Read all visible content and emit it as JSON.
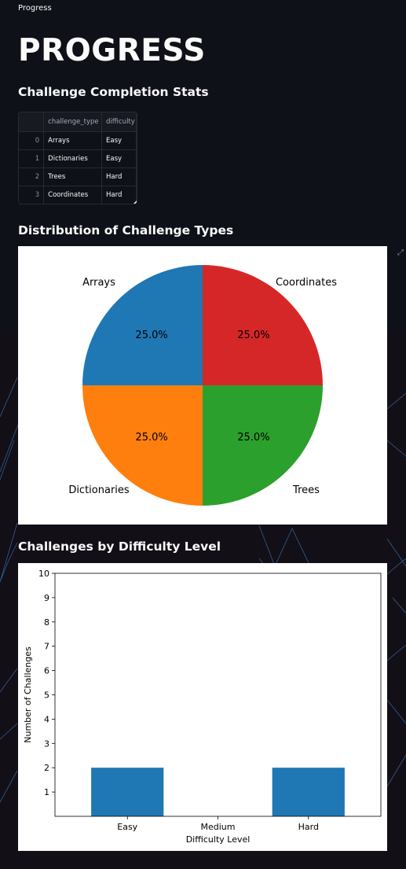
{
  "app": {
    "page_label": "Progress",
    "title": "PROGRESS"
  },
  "sections": {
    "stats_heading": "Challenge Completion Stats",
    "pie_heading": "Distribution of Challenge Types",
    "bar_heading": "Challenges by Difficulty Level"
  },
  "table": {
    "columns": [
      "challenge_type",
      "difficulty"
    ],
    "rows": [
      {
        "index": "0",
        "challenge_type": "Arrays",
        "difficulty": "Easy"
      },
      {
        "index": "1",
        "challenge_type": "Dictionaries",
        "difficulty": "Easy"
      },
      {
        "index": "2",
        "challenge_type": "Trees",
        "difficulty": "Hard"
      },
      {
        "index": "3",
        "challenge_type": "Coordinates",
        "difficulty": "Hard"
      }
    ]
  },
  "icons": {
    "expand": "expand-icon"
  },
  "chart_data": [
    {
      "type": "pie",
      "title": "",
      "labels": [
        "Arrays",
        "Dictionaries",
        "Trees",
        "Coordinates"
      ],
      "values": [
        25.0,
        25.0,
        25.0,
        25.0
      ],
      "autopct": [
        "25.0%",
        "25.0%",
        "25.0%",
        "25.0%"
      ],
      "colors": [
        "#1f77b4",
        "#ff7f0e",
        "#2ca02c",
        "#d62728"
      ]
    },
    {
      "type": "bar",
      "categories": [
        "Easy",
        "Medium",
        "Hard"
      ],
      "values": [
        2,
        0,
        2
      ],
      "xlabel": "Difficulty Level",
      "ylabel": "Number of Challenges",
      "ylim": [
        0,
        10
      ],
      "yticks": [
        1,
        2,
        3,
        4,
        5,
        6,
        7,
        8,
        9,
        10
      ],
      "color": "#1f77b4",
      "grid": false
    }
  ]
}
